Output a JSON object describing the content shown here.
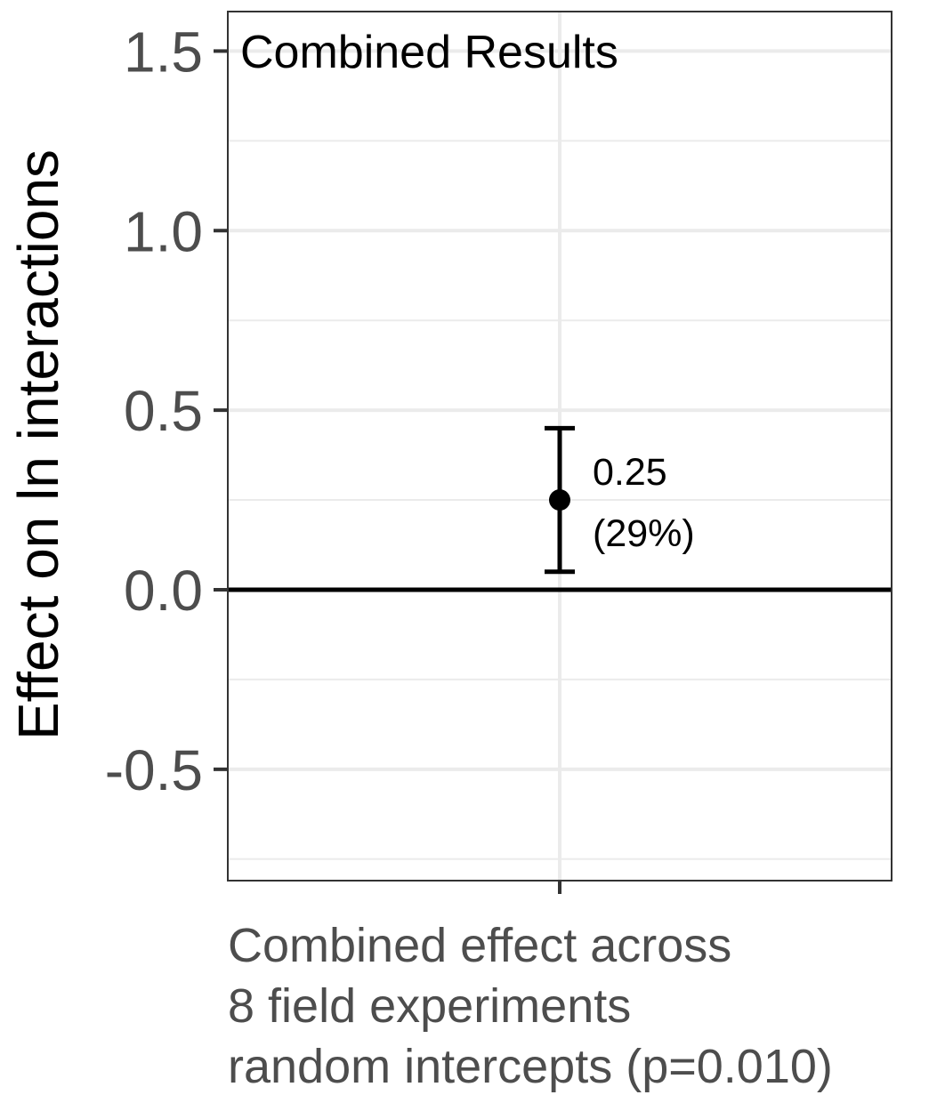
{
  "chart_data": {
    "type": "scatter",
    "title": "Combined Results",
    "ylabel": "Effect on ln interactions",
    "xlabel": "",
    "categories": [
      "Combined effect across 8 field experiments random intercepts (p=0.010)"
    ],
    "category_lines": [
      "Combined effect across",
      "8 field experiments",
      "random intercepts (p=0.010)"
    ],
    "ylim": [
      -0.81,
      1.61
    ],
    "yticks": [
      -0.5,
      0.0,
      0.5,
      1.0,
      1.5
    ],
    "ytick_labels": [
      "-0.5",
      "0.0",
      "0.5",
      "1.0",
      "1.5"
    ],
    "minor_yticks": [
      -0.75,
      -0.25,
      0.25,
      0.75,
      1.25
    ],
    "reference_line": 0.0,
    "grid": true,
    "points": [
      {
        "category_index": 0,
        "estimate": 0.25,
        "ci_low": 0.05,
        "ci_high": 0.45,
        "label_line1": "0.25",
        "label_line2": "(29%)"
      }
    ],
    "colors": {
      "point": "#000000",
      "grid": "#ebebeb",
      "panel_border": "#333333",
      "tick_text": "#4d4d4d"
    }
  }
}
